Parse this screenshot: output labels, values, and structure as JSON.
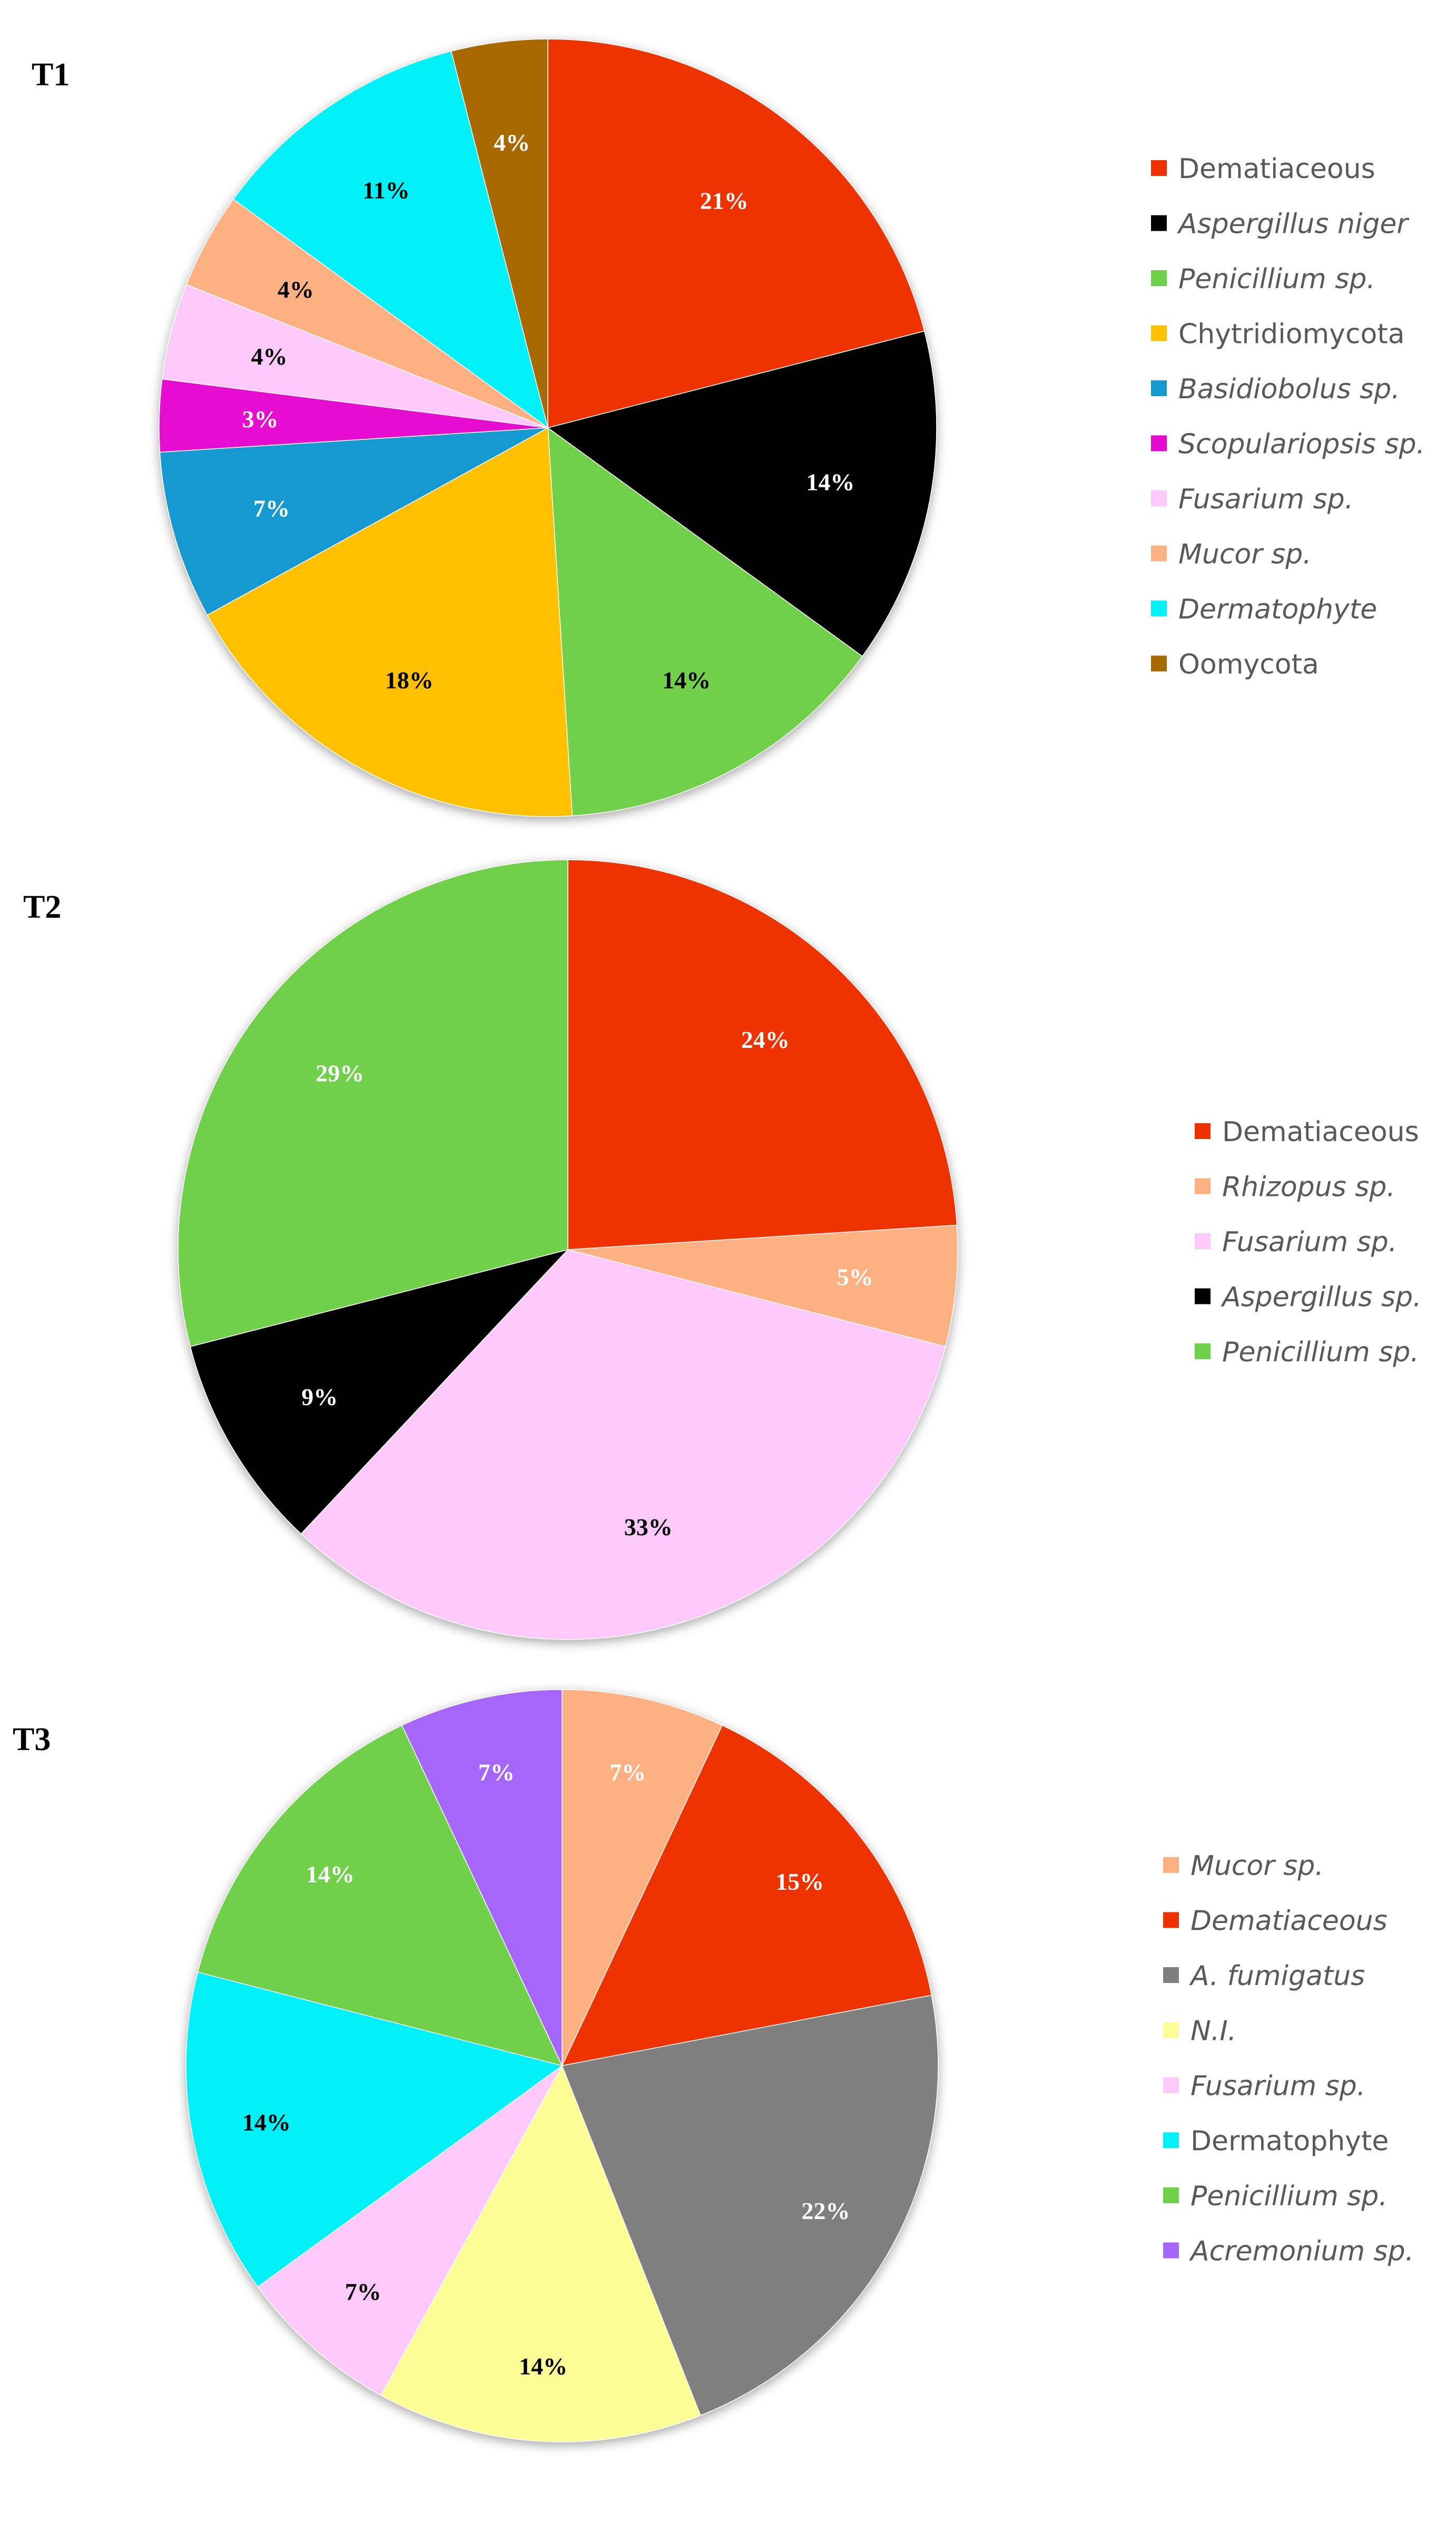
{
  "chart_data": [
    {
      "type": "pie",
      "title": "T1",
      "slices": [
        {
          "label": "Dematiaceous",
          "italic": false,
          "value": 21,
          "display": "21%",
          "color": "#ee3000",
          "label_color": "#ffffff"
        },
        {
          "label": "Aspergillus niger",
          "italic": true,
          "value": 14,
          "display": "14%",
          "color": "#000000",
          "label_color": "#ffffff"
        },
        {
          "label": "Penicillium sp.",
          "italic": true,
          "value": 14,
          "display": "14%",
          "color": "#6fd04a",
          "label_color": "#000000"
        },
        {
          "label": "Chytridiomycota",
          "italic": false,
          "value": 18,
          "display": "18%",
          "color": "#ffc000",
          "label_color": "#000000"
        },
        {
          "label": "Basidiobolus sp.",
          "italic": true,
          "value": 7,
          "display": "7%",
          "color": "#1699d1",
          "label_color": "#ffffff"
        },
        {
          "label": "Scopulariopsis sp.",
          "italic": true,
          "value": 3,
          "display": "3%",
          "color": "#e60ad0",
          "label_color": "#ffffff"
        },
        {
          "label": "Fusarium sp.",
          "italic": true,
          "value": 4,
          "display": "4%",
          "color": "#fdc9fb",
          "label_color": "#000000"
        },
        {
          "label": "Mucor sp.",
          "italic": true,
          "value": 4,
          "display": "4%",
          "color": "#fdb082",
          "label_color": "#000000"
        },
        {
          "label": "Dermatophyte",
          "italic": true,
          "value": 11,
          "display": "11%",
          "color": "#00f1f7",
          "label_color": "#000000"
        },
        {
          "label": "Oomycota",
          "italic": false,
          "value": 4,
          "display": "4%",
          "color": "#a86b00",
          "label_color": "#ffffff"
        }
      ],
      "legend_order": [
        0,
        1,
        2,
        3,
        4,
        5,
        6,
        7,
        8,
        9
      ]
    },
    {
      "type": "pie",
      "title": "T2",
      "slices": [
        {
          "label": "Dematiaceous",
          "italic": false,
          "value": 24,
          "display": "24%",
          "color": "#ee3000",
          "label_color": "#ffffff"
        },
        {
          "label": "Rhizopus sp.",
          "italic": true,
          "value": 5,
          "display": "5%",
          "color": "#fdb082",
          "label_color": "#ffffff"
        },
        {
          "label": "Fusarium sp.",
          "italic": true,
          "value": 33,
          "display": "33%",
          "color": "#fdc9fb",
          "label_color": "#000000"
        },
        {
          "label": "Aspergillus sp.",
          "italic": true,
          "value": 9,
          "display": "9%",
          "color": "#000000",
          "label_color": "#ffffff"
        },
        {
          "label": "Penicillium sp.",
          "italic": true,
          "value": 29,
          "display": "29%",
          "color": "#6fd04a",
          "label_color": "#ffffff"
        }
      ],
      "legend_order": [
        0,
        1,
        2,
        3,
        4
      ]
    },
    {
      "type": "pie",
      "title": "T3",
      "slices": [
        {
          "label": "Mucor sp.",
          "italic": true,
          "value": 7,
          "display": "7%",
          "color": "#fdb082",
          "label_color": "#ffffff"
        },
        {
          "label": "Dematiaceous",
          "italic": true,
          "value": 15,
          "display": "15%",
          "color": "#ee3000",
          "label_color": "#ffffff"
        },
        {
          "label": "A. fumigatus",
          "italic": true,
          "value": 22,
          "display": "22%",
          "color": "#7f7f7f",
          "label_color": "#ffffff"
        },
        {
          "label": "N.I.",
          "italic": true,
          "value": 14,
          "display": "14%",
          "color": "#fdfd96",
          "label_color": "#000000"
        },
        {
          "label": "Fusarium sp.",
          "italic": true,
          "value": 7,
          "display": "7%",
          "color": "#fdc9fb",
          "label_color": "#000000"
        },
        {
          "label": "Dermatophyte",
          "italic": false,
          "value": 14,
          "display": "14%",
          "color": "#00f1f7",
          "label_color": "#000000"
        },
        {
          "label": "Penicillium sp.",
          "italic": true,
          "value": 14,
          "display": "14%",
          "color": "#6fd04a",
          "label_color": "#ffffff"
        },
        {
          "label": "Acremonium sp.",
          "italic": true,
          "value": 7,
          "display": "7%",
          "color": "#a566fb",
          "label_color": "#ffffff"
        }
      ],
      "legend_order": [
        0,
        1,
        2,
        3,
        4,
        5,
        6,
        7
      ]
    }
  ]
}
